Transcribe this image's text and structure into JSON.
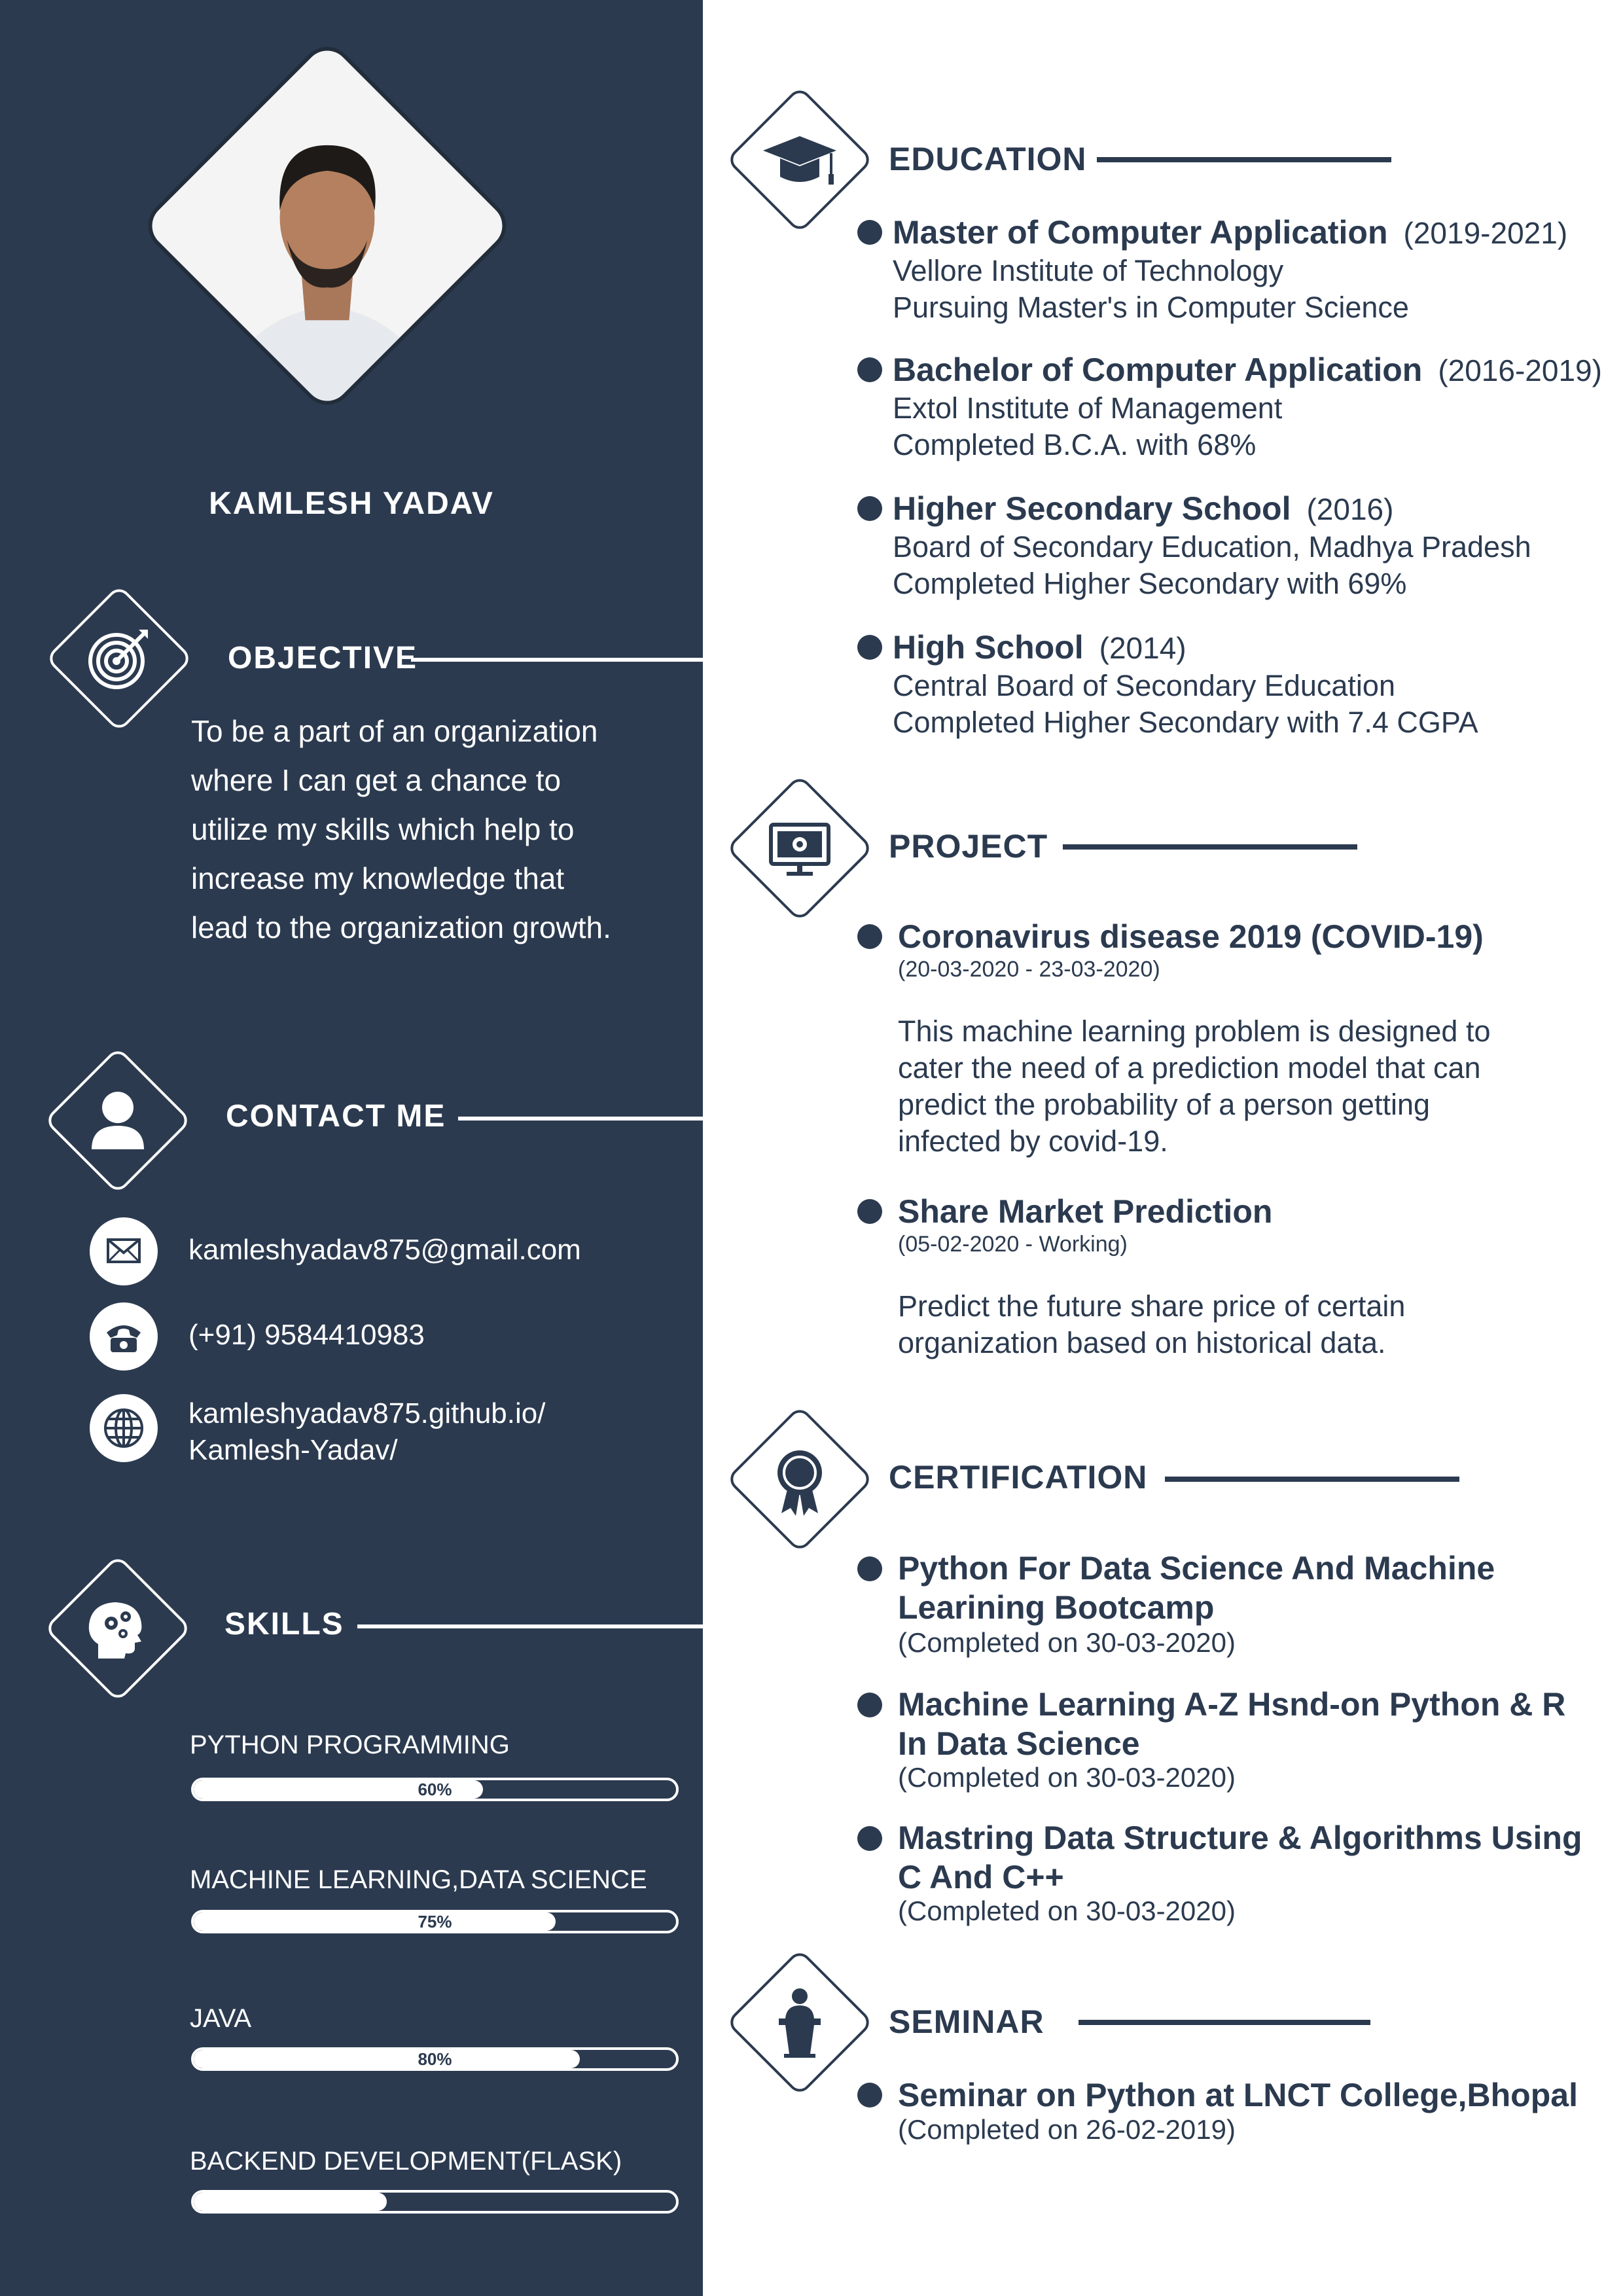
{
  "colors": {
    "primary": "#2b3a4f",
    "background": "#ffffff"
  },
  "profile": {
    "name": "KAMLESH YADAV"
  },
  "objective": {
    "title": "OBJECTIVE",
    "icon": "target-icon",
    "lines": [
      "To be a part of an organization",
      "where I can get a chance to",
      "utilize my skills which help to",
      "increase my knowledge that",
      "lead to the organization growth."
    ]
  },
  "contact": {
    "title": "CONTACT ME",
    "icon": "user-icon",
    "email": "kamleshyadav875@gmail.com",
    "phone": "(+91) 9584410983",
    "website_line1": "kamleshyadav875.github.io/",
    "website_line2": "Kamlesh-Yadav/"
  },
  "skills": {
    "title": "SKILLS",
    "icon": "brain-gears-icon",
    "items": [
      {
        "label": "PYTHON PROGRAMMING",
        "level": 60,
        "pct": "60%"
      },
      {
        "label": "MACHINE LEARNING,DATA SCIENCE",
        "level": 75,
        "pct": "75%"
      },
      {
        "label": "JAVA",
        "level": 80,
        "pct": "80%"
      },
      {
        "label": "BACKEND DEVELOPMENT(FLASK)",
        "level": 40,
        "pct": "40%"
      }
    ]
  },
  "education": {
    "title": "EDUCATION",
    "icon": "graduation-cap-icon",
    "items": [
      {
        "degree": "Master of Computer Application",
        "years": "(2019-2021)",
        "line1": "Vellore Institute of Technology",
        "line2": "Pursuing Master's in Computer Science"
      },
      {
        "degree": "Bachelor of Computer Application",
        "years": "(2016-2019)",
        "line1": "Extol Institute of Management",
        "line2": "Completed B.C.A. with 68%"
      },
      {
        "degree": "Higher Secondary School",
        "years": "(2016)",
        "line1": "Board of Secondary Education, Madhya Pradesh",
        "line2": "Completed Higher Secondary with 69%"
      },
      {
        "degree": "High School",
        "years": "(2014)",
        "line1": "Central Board of Secondary Education",
        "line2": "Completed Higher Secondary with 7.4 CGPA"
      }
    ]
  },
  "project": {
    "title": "PROJECT",
    "icon": "monitor-gear-icon",
    "items": [
      {
        "name": "Coronavirus disease 2019 (COVID-19)",
        "dates": "(20-03-2020 - 23-03-2020)",
        "desc": [
          "This machine learning problem is designed to",
          "cater the need of a prediction model that can",
          "predict the probability of a person getting",
          "infected by covid-19."
        ]
      },
      {
        "name": "Share Market Prediction",
        "dates": "(05-02-2020 - Working)",
        "desc": [
          "Predict the future share price of certain",
          "organization based on historical data."
        ]
      }
    ]
  },
  "certification": {
    "title": "CERTIFICATION",
    "icon": "award-ribbon-icon",
    "items": [
      {
        "line1": "Python For Data Science And Machine",
        "line2": "Learining Bootcamp",
        "completed": "(Completed on 30-03-2020)"
      },
      {
        "line1": "Machine Learning A-Z Hsnd-on Python & R",
        "line2": "In Data Science",
        "completed": "(Completed on 30-03-2020)"
      },
      {
        "line1": "Mastring Data Structure & Algorithms Using",
        "line2": "C And C++",
        "completed": "(Completed on 30-03-2020)"
      }
    ]
  },
  "seminar": {
    "title": "SEMINAR",
    "icon": "speaker-podium-icon",
    "items": [
      {
        "name": "Seminar on Python at LNCT College,Bhopal",
        "completed": "(Completed on 26-02-2019)"
      }
    ]
  }
}
